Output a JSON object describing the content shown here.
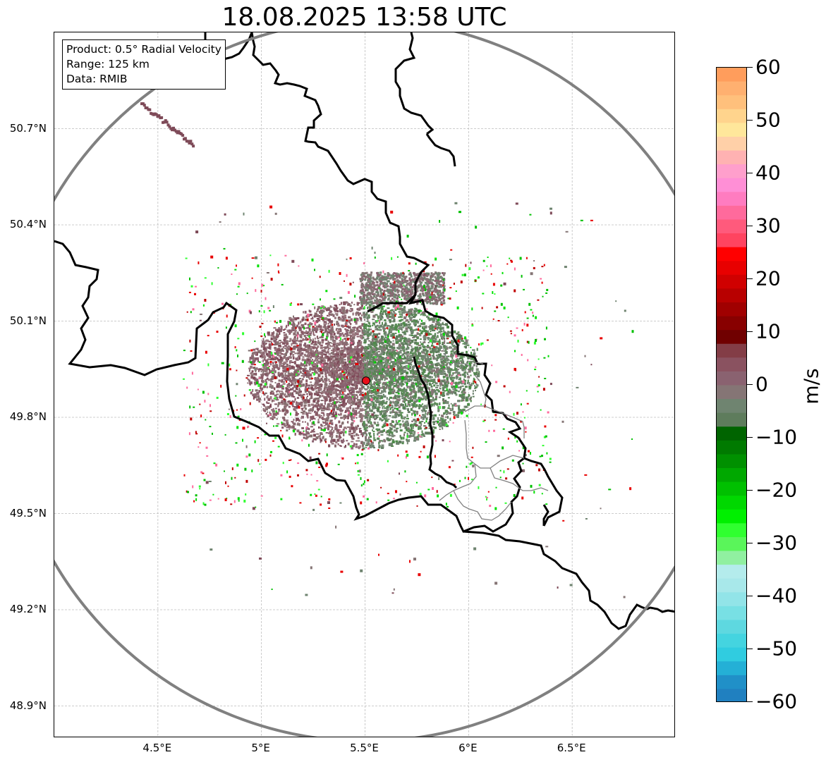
{
  "title": "18.08.2025 13:58 UTC",
  "info": {
    "product": "Product: 0.5° Radial Velocity",
    "range": "Range: 125 km",
    "data": "Data: RMIB"
  },
  "map": {
    "lon_range": [
      4.0,
      7.0
    ],
    "lat_range": [
      48.8,
      51.0
    ],
    "radar_site": {
      "lon": 5.505,
      "lat": 49.914
    },
    "range_ring_km": 125,
    "lat_ticks": [
      {
        "lat": 50.7,
        "label": "50.7°N"
      },
      {
        "lat": 50.4,
        "label": "50.4°N"
      },
      {
        "lat": 50.1,
        "label": "50.1°N"
      },
      {
        "lat": 49.8,
        "label": "49.8°N"
      },
      {
        "lat": 49.5,
        "label": "49.5°N"
      },
      {
        "lat": 49.2,
        "label": "49.2°N"
      },
      {
        "lat": 48.9,
        "label": "48.9°N"
      }
    ],
    "lon_ticks": [
      {
        "lon": 4.5,
        "label": "4.5°E"
      },
      {
        "lon": 5.0,
        "label": "5°E"
      },
      {
        "lon": 5.5,
        "label": "5.5°E"
      },
      {
        "lon": 6.0,
        "label": "6°E"
      },
      {
        "lon": 6.5,
        "label": "6.5°E"
      }
    ]
  },
  "colorbar": {
    "label": "m/s",
    "min": -60,
    "max": 60,
    "ticks": [
      "60",
      "50",
      "40",
      "30",
      "20",
      "10",
      "0",
      "−10",
      "−20",
      "−30",
      "−40",
      "−50",
      "−60"
    ],
    "colors_top_to_bottom": [
      "#ff9d5c",
      "#ffb070",
      "#ffc07c",
      "#ffd48d",
      "#ffe79b",
      "#ffd0a8",
      "#ffb2b2",
      "#ff9fcc",
      "#ff8fd6",
      "#ff7cc0",
      "#ff6a9c",
      "#ff5a7c",
      "#ff4460",
      "#ff0000",
      "#e80000",
      "#d00000",
      "#b80000",
      "#a00000",
      "#880000",
      "#700000",
      "#833d46",
      "#8a5260",
      "#8a6270",
      "#857575",
      "#6f8470",
      "#5e7c5c",
      "#006400",
      "#007a00",
      "#009000",
      "#00a800",
      "#00c000",
      "#00d800",
      "#00f000",
      "#30ff30",
      "#5af55a",
      "#90f0a0",
      "#b4ecec",
      "#a8e8ea",
      "#92e4e8",
      "#78e0e4",
      "#5ed8e0",
      "#44d4e0",
      "#30cce0",
      "#24b0d6",
      "#2090c8",
      "#2080c0"
    ]
  }
}
